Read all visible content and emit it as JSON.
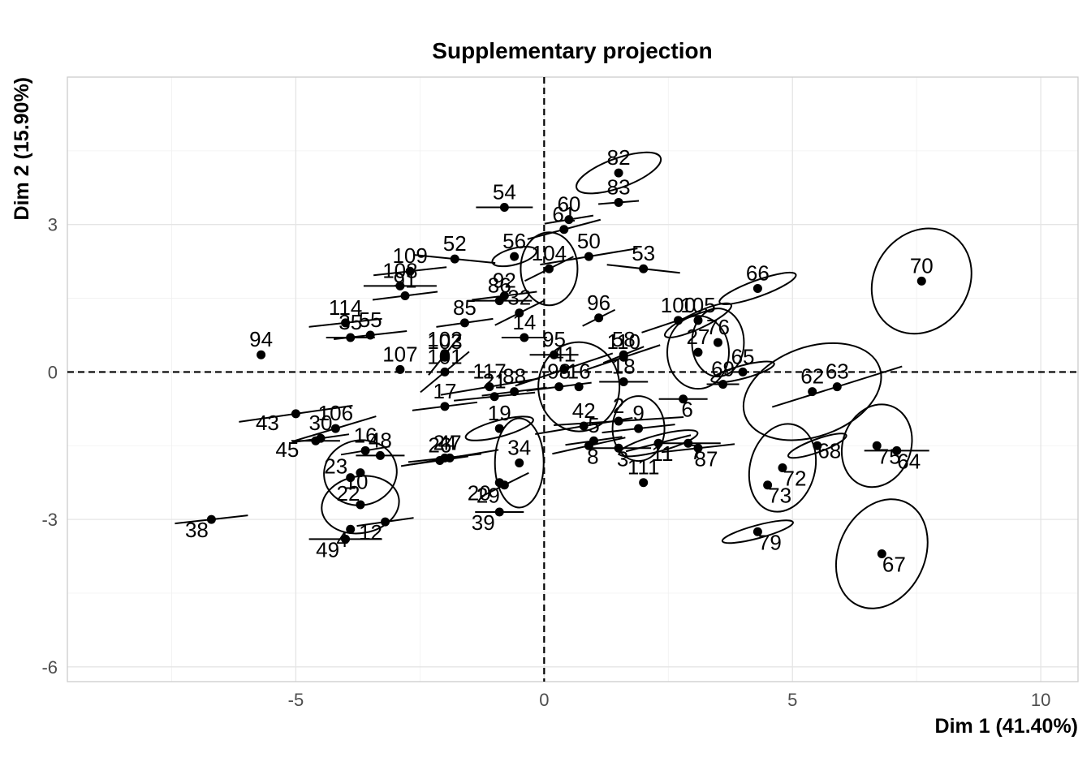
{
  "chart_data": {
    "type": "scatter",
    "title": "Supplementary projection",
    "xlabel": "Dim 1 (41.40%)",
    "ylabel": "Dim 2 (15.90%)",
    "xlim": [
      -9.6,
      10.75
    ],
    "ylim": [
      -6.3,
      6.0
    ],
    "xticks": [
      -5,
      0,
      5,
      10
    ],
    "yticks": [
      -6,
      -3,
      0,
      3
    ],
    "xtick_labels": [
      "-5",
      "0",
      "5",
      "10"
    ],
    "ytick_labels": [
      "-6",
      "-3",
      "0",
      "3"
    ],
    "grid": true,
    "reference_lines": {
      "x": 0,
      "y": 0,
      "style": "dashed"
    },
    "points": [
      {
        "label": "82",
        "x": 1.5,
        "y": 4.05
      },
      {
        "label": "83",
        "x": 1.5,
        "y": 3.45
      },
      {
        "label": "54",
        "x": -0.8,
        "y": 3.35
      },
      {
        "label": "60",
        "x": 0.5,
        "y": 3.1
      },
      {
        "label": "61",
        "x": 0.4,
        "y": 2.9
      },
      {
        "label": "50",
        "x": 0.9,
        "y": 2.35
      },
      {
        "label": "53",
        "x": 2.0,
        "y": 2.1
      },
      {
        "label": "70",
        "x": 7.6,
        "y": 1.85
      },
      {
        "label": "66",
        "x": 4.3,
        "y": 1.7
      },
      {
        "label": "109",
        "x": -2.7,
        "y": 2.05
      },
      {
        "label": "108",
        "x": -2.9,
        "y": 1.75
      },
      {
        "label": "52",
        "x": -1.8,
        "y": 2.3
      },
      {
        "label": "56",
        "x": -0.6,
        "y": 2.35
      },
      {
        "label": "104",
        "x": 0.1,
        "y": 2.1
      },
      {
        "label": "86",
        "x": -0.9,
        "y": 1.45
      },
      {
        "label": "92",
        "x": -0.8,
        "y": 1.55
      },
      {
        "label": "85",
        "x": -1.6,
        "y": 1.0
      },
      {
        "label": "32",
        "x": -0.5,
        "y": 1.2
      },
      {
        "label": "14",
        "x": -0.4,
        "y": 0.7
      },
      {
        "label": "96",
        "x": 1.1,
        "y": 1.1
      },
      {
        "label": "91",
        "x": -2.8,
        "y": 1.55
      },
      {
        "label": "114",
        "x": -4.0,
        "y": 1.0
      },
      {
        "label": "35",
        "x": -3.9,
        "y": 0.7
      },
      {
        "label": "55",
        "x": -3.5,
        "y": 0.75
      },
      {
        "label": "94",
        "x": -5.7,
        "y": 0.35
      },
      {
        "label": "102",
        "x": -2.0,
        "y": 0.35
      },
      {
        "label": "103",
        "x": -2.0,
        "y": 0.3
      },
      {
        "label": "107",
        "x": -2.9,
        "y": 0.05
      },
      {
        "label": "101",
        "x": -2.0,
        "y": 0.0
      },
      {
        "label": "95",
        "x": 0.2,
        "y": 0.35
      },
      {
        "label": "41",
        "x": 0.4,
        "y": 0.05
      },
      {
        "label": "100",
        "x": 2.7,
        "y": 1.05
      },
      {
        "label": "105",
        "x": 3.1,
        "y": 1.05
      },
      {
        "label": "27",
        "x": 3.1,
        "y": 0.4
      },
      {
        "label": "76",
        "x": 3.5,
        "y": 0.6
      },
      {
        "label": "58",
        "x": 1.6,
        "y": 0.35
      },
      {
        "label": "110",
        "x": 1.6,
        "y": 0.3
      },
      {
        "label": "65",
        "x": 4.0,
        "y": 0.0
      },
      {
        "label": "69",
        "x": 3.6,
        "y": -0.25
      },
      {
        "label": "62",
        "x": 5.4,
        "y": -0.4
      },
      {
        "label": "63",
        "x": 5.9,
        "y": -0.3
      },
      {
        "label": "6",
        "x": 2.8,
        "y": -0.55
      },
      {
        "label": "18",
        "x": 1.6,
        "y": -0.2
      },
      {
        "label": "16",
        "x": 0.7,
        "y": -0.3
      },
      {
        "label": "98",
        "x": 0.3,
        "y": -0.3
      },
      {
        "label": "117",
        "x": -1.1,
        "y": -0.3
      },
      {
        "label": "21",
        "x": -1.0,
        "y": -0.5
      },
      {
        "label": "88",
        "x": -0.6,
        "y": -0.4
      },
      {
        "label": "17",
        "x": -2.0,
        "y": -0.7
      },
      {
        "label": "42",
        "x": 0.8,
        "y": -1.1
      },
      {
        "label": "2",
        "x": 1.5,
        "y": -1.0
      },
      {
        "label": "19",
        "x": -0.9,
        "y": -1.15
      },
      {
        "label": "9",
        "x": 1.9,
        "y": -1.15
      },
      {
        "label": "11",
        "x": 2.3,
        "y": -1.45
      },
      {
        "label": "111",
        "x": 2.0,
        "y": -2.25
      },
      {
        "label": "43",
        "x": -5.0,
        "y": -0.85
      },
      {
        "label": "106",
        "x": -4.2,
        "y": -1.15
      },
      {
        "label": "30",
        "x": -4.5,
        "y": -1.35
      },
      {
        "label": "45",
        "x": -4.6,
        "y": -1.4
      },
      {
        "label": "47",
        "x": -1.9,
        "y": -1.75
      },
      {
        "label": "16b",
        "x": -3.6,
        "y": -1.6
      },
      {
        "label": "48",
        "x": -3.3,
        "y": -1.7
      },
      {
        "label": "10",
        "x": -3.7,
        "y": -2.05
      },
      {
        "label": "23",
        "x": -3.9,
        "y": -2.15
      },
      {
        "label": "22",
        "x": -3.7,
        "y": -2.7
      },
      {
        "label": "12",
        "x": -3.2,
        "y": -3.05
      },
      {
        "label": "4",
        "x": -3.9,
        "y": -3.2
      },
      {
        "label": "49",
        "x": -4.0,
        "y": -3.4
      },
      {
        "label": "38",
        "x": -6.7,
        "y": -3.0
      },
      {
        "label": "26",
        "x": -2.1,
        "y": -1.8
      },
      {
        "label": "24",
        "x": -2.0,
        "y": -1.75
      },
      {
        "label": "34",
        "x": -0.5,
        "y": -1.85
      },
      {
        "label": "29",
        "x": -0.8,
        "y": -2.3
      },
      {
        "label": "20",
        "x": -0.9,
        "y": -2.25
      },
      {
        "label": "39",
        "x": -0.9,
        "y": -2.85
      },
      {
        "label": "8",
        "x": 0.9,
        "y": -1.5
      },
      {
        "label": "5",
        "x": 1.0,
        "y": -1.4
      },
      {
        "label": "3",
        "x": 1.5,
        "y": -1.55
      },
      {
        "label": "7",
        "x": 2.9,
        "y": -1.45
      },
      {
        "label": "87",
        "x": 3.1,
        "y": -1.55
      },
      {
        "label": "68",
        "x": 5.5,
        "y": -1.5
      },
      {
        "label": "72",
        "x": 4.8,
        "y": -1.95
      },
      {
        "label": "73",
        "x": 4.5,
        "y": -2.3
      },
      {
        "label": "79",
        "x": 4.3,
        "y": -3.25
      },
      {
        "label": "75",
        "x": 6.7,
        "y": -1.5
      },
      {
        "label": "64",
        "x": 7.1,
        "y": -1.6
      },
      {
        "label": "67",
        "x": 6.8,
        "y": -3.7
      }
    ]
  }
}
